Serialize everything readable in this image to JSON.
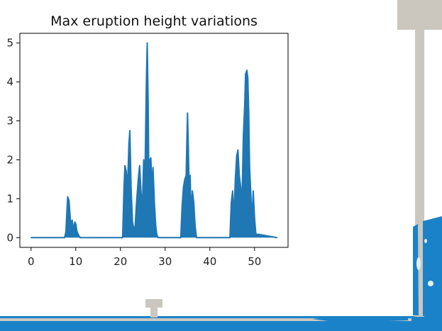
{
  "colors": {
    "series": "#1f77b4",
    "water": "#1a82c8",
    "structure": "#cbc7bf",
    "axis": "#000000"
  },
  "chart_data": {
    "type": "area",
    "title": "Max eruption height variations",
    "xlabel": "",
    "ylabel": "",
    "xlim": [
      -2.5,
      57.5
    ],
    "ylim": [
      -0.25,
      5.25
    ],
    "xticks": [
      0,
      10,
      20,
      30,
      40,
      50
    ],
    "yticks": [
      0,
      1,
      2,
      3,
      4,
      5
    ],
    "grid": false,
    "series": [
      {
        "x": [
          0,
          7.5,
          7.8,
          8.0,
          8.2,
          8.5,
          8.9,
          9.2,
          9.5,
          9.8,
          10.0,
          10.3,
          10.7,
          11.0,
          20.5,
          20.8,
          21.0,
          21.3,
          21.6,
          21.9,
          22.1,
          22.4,
          22.7,
          23.0,
          23.3,
          23.6,
          24.0,
          24.3,
          24.6,
          24.9,
          25.2,
          25.5,
          25.8,
          26.0,
          26.2,
          26.4,
          26.6,
          26.8,
          27.1,
          27.3,
          27.6,
          27.9,
          28.1,
          28.4,
          33.5,
          33.8,
          34.1,
          34.4,
          34.7,
          35.0,
          35.2,
          35.4,
          35.6,
          35.8,
          36.1,
          36.4,
          36.7,
          37.0,
          44.5,
          44.8,
          45.1,
          45.4,
          45.7,
          46.0,
          46.3,
          46.6,
          46.9,
          47.2,
          47.5,
          47.8,
          48.0,
          48.3,
          48.5,
          48.7,
          48.9,
          49.1,
          49.3,
          49.5,
          49.7,
          50.0,
          50.3,
          55.0
        ],
        "y": [
          0,
          0,
          0.15,
          0.6,
          1.05,
          0.95,
          0.3,
          0.45,
          0.2,
          0.4,
          0.35,
          0.15,
          0.05,
          0,
          0,
          1.3,
          1.85,
          1.7,
          1.3,
          2.4,
          2.75,
          1.2,
          0.4,
          0.2,
          0.3,
          0.9,
          1.5,
          1.85,
          1.2,
          0.7,
          2.0,
          1.6,
          4.0,
          5.0,
          3.5,
          1.0,
          2.0,
          2.05,
          1.2,
          1.8,
          0.9,
          0.3,
          0.1,
          0,
          0,
          0.8,
          1.3,
          1.5,
          1.6,
          3.2,
          2.3,
          1.0,
          1.6,
          0.6,
          1.2,
          0.9,
          0.3,
          0,
          0,
          0.9,
          1.2,
          0.5,
          1.5,
          2.1,
          2.25,
          1.6,
          1.3,
          0.9,
          2.6,
          3.4,
          4.2,
          4.3,
          4.1,
          3.2,
          1.8,
          1.3,
          0.8,
          0.6,
          1.2,
          0.5,
          0.1,
          0
        ]
      }
    ]
  }
}
